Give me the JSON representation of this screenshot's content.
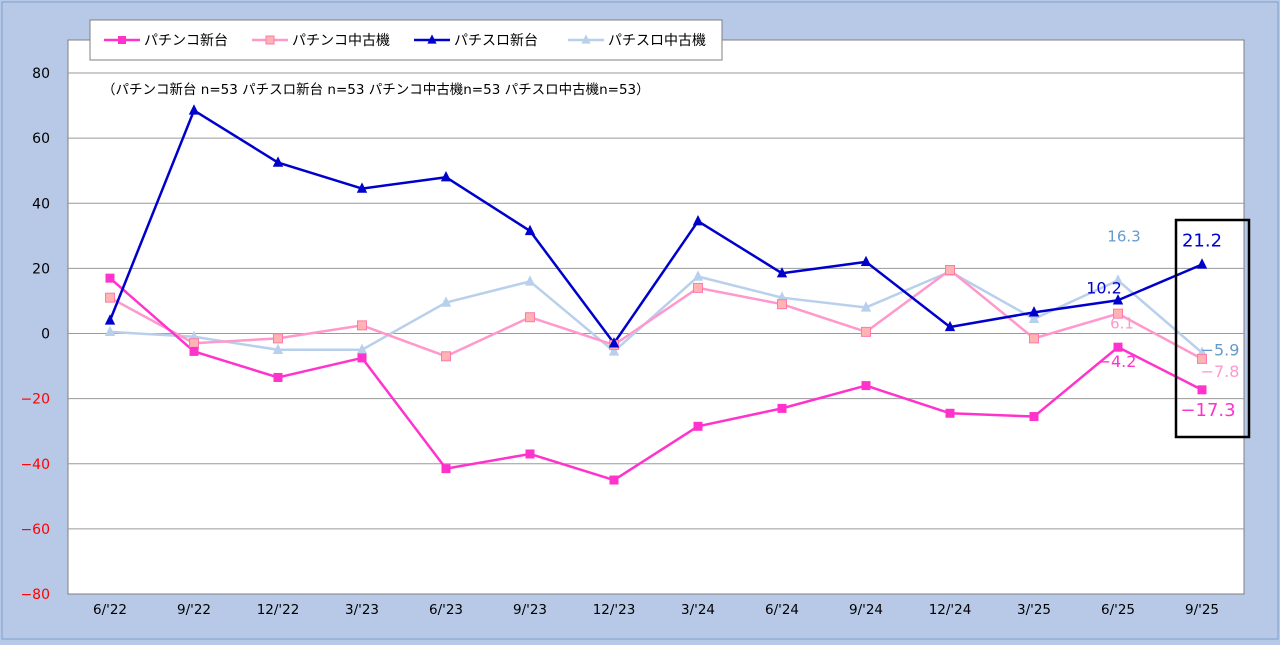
{
  "chart_data": {
    "type": "line",
    "title": "",
    "xlabel": "",
    "ylabel": "",
    "note": "（パチンコ新台 n=53  パチスロ新台 n=53  パチンコ中古機n=53  パチスロ中古機n=53）",
    "categories": [
      "6/'22",
      "9/'22",
      "12/'22",
      "3/'23",
      "6/'23",
      "9/'23",
      "12/'23",
      "3/'24",
      "6/'24",
      "9/'24",
      "12/'24",
      "3/'25",
      "6/'25",
      "9/'25"
    ],
    "ylim": [
      -80,
      80
    ],
    "yticks": [
      {
        "value": 80,
        "label": "80"
      },
      {
        "value": 60,
        "label": "60"
      },
      {
        "value": 40,
        "label": "40"
      },
      {
        "value": 20,
        "label": "20"
      },
      {
        "value": 0,
        "label": "0"
      },
      {
        "value": -20,
        "label": "−20"
      },
      {
        "value": -40,
        "label": "−40"
      },
      {
        "value": -60,
        "label": "−60"
      },
      {
        "value": -80,
        "label": "−80"
      }
    ],
    "grid": "horizontal",
    "legend_position": "top-left",
    "colors": {
      "positive_tick": "#000000",
      "negative_tick": "#ff0000",
      "background": "#b7c9e6",
      "plot_background": "#ffffff"
    },
    "series": [
      {
        "name": "パチンコ新台",
        "key": "pachinko-new",
        "color": "#ff33cc",
        "marker": "square",
        "values": [
          17,
          -5.5,
          -13.5,
          -7.5,
          -41.5,
          -37,
          -45,
          -28.5,
          -23,
          -16,
          -24.5,
          -25.5,
          -4.2,
          -17.3
        ]
      },
      {
        "name": "パチンコ中古機",
        "key": "pachinko-used",
        "color": "#ff99cc",
        "marker": "square-hollow",
        "values": [
          11,
          -3,
          -1.5,
          2.5,
          -7,
          5,
          -3.5,
          14,
          9,
          0.5,
          19.5,
          -1.5,
          6.1,
          -7.8
        ]
      },
      {
        "name": "パチスロ新台",
        "key": "pachislot-new",
        "color": "#0000cc",
        "marker": "triangle",
        "values": [
          4,
          68.5,
          52.5,
          44.5,
          48,
          31.5,
          -3,
          34.5,
          18.5,
          22,
          2,
          6.5,
          10.2,
          21.2
        ]
      },
      {
        "name": "パチスロ中古機",
        "key": "pachislot-used",
        "color": "#b8d0ec",
        "marker": "triangle",
        "values": [
          0.5,
          -1,
          -5,
          -5,
          9.5,
          16,
          -5.5,
          17.5,
          11,
          8,
          19,
          4.5,
          16.3,
          -5.9
        ]
      }
    ],
    "annotations": [
      {
        "series": "pachislot-new",
        "index": 13,
        "text": "21.2",
        "color": "#0000cc"
      },
      {
        "series": "pachislot-new",
        "index": 12,
        "text": "10.2",
        "color": "#0000cc"
      },
      {
        "series": "pachislot-used",
        "index": 12,
        "text": "16.3",
        "color": "#6699cc"
      },
      {
        "series": "pachislot-used",
        "index": 13,
        "text": "−5.9",
        "color": "#6699cc"
      },
      {
        "series": "pachinko-used",
        "index": 12,
        "text": "6.1",
        "color": "#ff99cc"
      },
      {
        "series": "pachinko-used",
        "index": 13,
        "text": "−7.8",
        "color": "#ff99cc"
      },
      {
        "series": "pachinko-new",
        "index": 12,
        "text": "−4.2",
        "color": "#ff33cc"
      },
      {
        "series": "pachinko-new",
        "index": 13,
        "text": "−17.3",
        "color": "#ff33cc"
      }
    ],
    "highlight": {
      "index": 13,
      "description": "latest period emphasized with black box"
    }
  }
}
